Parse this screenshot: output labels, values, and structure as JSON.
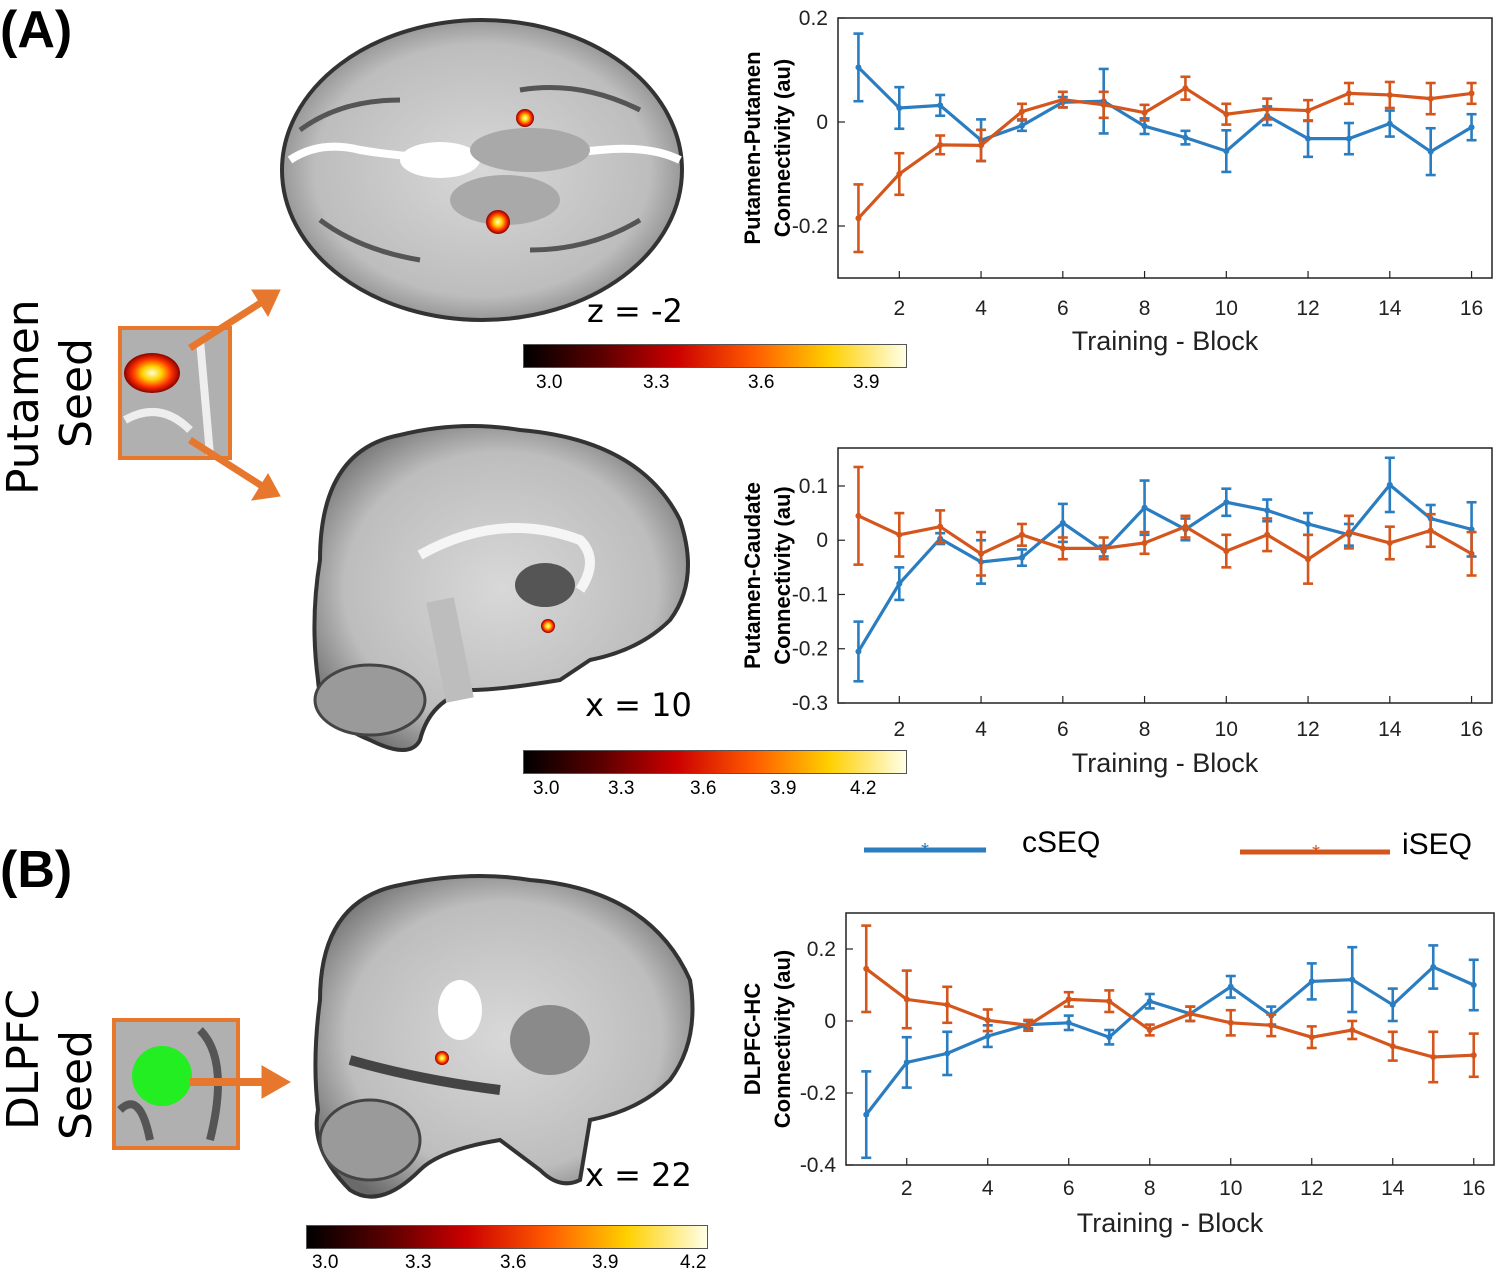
{
  "panels": {
    "a_label": "(A)",
    "b_label": "(B)",
    "seed_a": {
      "line1": "Putamen",
      "line2": "Seed"
    },
    "seed_b": {
      "line1": "DLPFC",
      "line2": "Seed"
    }
  },
  "brain": {
    "axial_coord": "z = -2",
    "sagittal_a_coord": "x = 10",
    "sagittal_b_coord": "x = 22"
  },
  "colorbars": [
    {
      "ticks": [
        "3.0",
        "3.3",
        "3.6",
        "3.9"
      ]
    },
    {
      "ticks": [
        "3.0",
        "3.3",
        "3.6",
        "3.9",
        "4.2"
      ]
    },
    {
      "ticks": [
        "3.0",
        "3.3",
        "3.6",
        "3.9",
        "4.2"
      ]
    }
  ],
  "legend": {
    "cseq": "cSEQ",
    "iseq": "iSEQ"
  },
  "colors": {
    "cseq": "#2a7dc0",
    "iseq": "#d4561c",
    "seed_outline": "#e8772e",
    "dlpfc_seed": "#22ee22"
  },
  "chart_data": [
    {
      "type": "line",
      "ylabel_line1": "Putamen-Putamen",
      "ylabel_line2": "Connectivity (au)",
      "xlabel": "Training - Block",
      "xlim": [
        0.5,
        16.5
      ],
      "ylim": [
        -0.3,
        0.2
      ],
      "xticks": [
        "2",
        "4",
        "6",
        "8",
        "10",
        "12",
        "14",
        "16"
      ],
      "yticks": [
        {
          "v": 0.2,
          "label": "0.2"
        },
        {
          "v": 0,
          "label": "0"
        },
        {
          "v": -0.2,
          "label": "-0.2"
        }
      ],
      "x": [
        1,
        2,
        3,
        4,
        5,
        6,
        7,
        8,
        9,
        10,
        11,
        12,
        13,
        14,
        15,
        16
      ],
      "series": [
        {
          "name": "cSEQ",
          "values": [
            0.105,
            0.027,
            0.032,
            -0.035,
            -0.007,
            0.038,
            0.04,
            -0.008,
            -0.03,
            -0.056,
            0.012,
            -0.032,
            -0.032,
            -0.003,
            -0.057,
            -0.01
          ],
          "errors": [
            0.065,
            0.04,
            0.02,
            0.04,
            0.01,
            0.01,
            0.062,
            0.015,
            0.013,
            0.04,
            0.018,
            0.035,
            0.03,
            0.025,
            0.045,
            0.025
          ]
        },
        {
          "name": "iSEQ",
          "values": [
            -0.185,
            -0.1,
            -0.044,
            -0.045,
            0.02,
            0.043,
            0.033,
            0.018,
            0.065,
            0.015,
            0.025,
            0.022,
            0.055,
            0.052,
            0.045,
            0.055
          ],
          "errors": [
            0.065,
            0.04,
            0.018,
            0.03,
            0.015,
            0.015,
            0.025,
            0.015,
            0.022,
            0.02,
            0.02,
            0.02,
            0.02,
            0.025,
            0.03,
            0.02
          ]
        }
      ]
    },
    {
      "type": "line",
      "ylabel_line1": "Putamen-Caudate",
      "ylabel_line2": "Connectivity (au)",
      "xlabel": "Training - Block",
      "xlim": [
        0.5,
        16.5
      ],
      "ylim": [
        -0.3,
        0.17
      ],
      "xticks": [
        "2",
        "4",
        "6",
        "8",
        "10",
        "12",
        "14",
        "16"
      ],
      "yticks": [
        {
          "v": 0.1,
          "label": "0.1"
        },
        {
          "v": 0,
          "label": "0"
        },
        {
          "v": -0.1,
          "label": "-0.1"
        },
        {
          "v": -0.2,
          "label": "-0.2"
        },
        {
          "v": -0.3,
          "label": "-0.3"
        }
      ],
      "x": [
        1,
        2,
        3,
        4,
        5,
        6,
        7,
        8,
        9,
        10,
        11,
        12,
        13,
        14,
        15,
        16
      ],
      "series": [
        {
          "name": "cSEQ",
          "values": [
            -0.205,
            -0.08,
            0.003,
            -0.04,
            -0.032,
            0.032,
            -0.02,
            0.06,
            0.02,
            0.07,
            0.055,
            0.03,
            0.01,
            0.102,
            0.04,
            0.02
          ],
          "errors": [
            0.055,
            0.03,
            0.01,
            0.04,
            0.015,
            0.035,
            0.01,
            0.05,
            0.02,
            0.025,
            0.02,
            0.02,
            0.02,
            0.05,
            0.025,
            0.05
          ]
        },
        {
          "name": "iSEQ",
          "values": [
            0.045,
            0.01,
            0.025,
            -0.025,
            0.01,
            -0.015,
            -0.015,
            -0.005,
            0.025,
            -0.02,
            0.01,
            -0.035,
            0.015,
            -0.005,
            0.018,
            -0.025
          ],
          "errors": [
            0.09,
            0.04,
            0.03,
            0.04,
            0.02,
            0.02,
            0.02,
            0.02,
            0.02,
            0.03,
            0.03,
            0.045,
            0.03,
            0.03,
            0.03,
            0.04
          ]
        }
      ]
    },
    {
      "type": "line",
      "ylabel_line1": "DLPFC-HC",
      "ylabel_line2": "Connectivity (au)",
      "xlabel": "Training - Block",
      "xlim": [
        0.5,
        16.5
      ],
      "ylim": [
        -0.4,
        0.3
      ],
      "xticks": [
        "2",
        "4",
        "6",
        "8",
        "10",
        "12",
        "14",
        "16"
      ],
      "yticks": [
        {
          "v": 0.2,
          "label": "0.2"
        },
        {
          "v": 0,
          "label": "0"
        },
        {
          "v": -0.2,
          "label": "-0.2"
        },
        {
          "v": -0.4,
          "label": "-0.4"
        }
      ],
      "x": [
        1,
        2,
        3,
        4,
        5,
        6,
        7,
        8,
        9,
        10,
        11,
        12,
        13,
        14,
        15,
        16
      ],
      "series": [
        {
          "name": "cSEQ",
          "values": [
            -0.26,
            -0.115,
            -0.09,
            -0.042,
            -0.01,
            -0.005,
            -0.045,
            0.055,
            0.02,
            0.095,
            0.015,
            0.11,
            0.115,
            0.045,
            0.15,
            0.1
          ],
          "errors": [
            0.12,
            0.07,
            0.06,
            0.03,
            0.01,
            0.02,
            0.02,
            0.02,
            0.02,
            0.03,
            0.025,
            0.05,
            0.09,
            0.045,
            0.06,
            0.07
          ]
        },
        {
          "name": "iSEQ",
          "values": [
            0.145,
            0.06,
            0.045,
            0.002,
            -0.012,
            0.06,
            0.055,
            -0.025,
            0.02,
            -0.005,
            -0.012,
            -0.045,
            -0.025,
            -0.07,
            -0.1,
            -0.095
          ],
          "errors": [
            0.12,
            0.08,
            0.05,
            0.03,
            0.015,
            0.02,
            0.03,
            0.015,
            0.02,
            0.035,
            0.03,
            0.03,
            0.025,
            0.04,
            0.07,
            0.06
          ]
        }
      ]
    }
  ]
}
